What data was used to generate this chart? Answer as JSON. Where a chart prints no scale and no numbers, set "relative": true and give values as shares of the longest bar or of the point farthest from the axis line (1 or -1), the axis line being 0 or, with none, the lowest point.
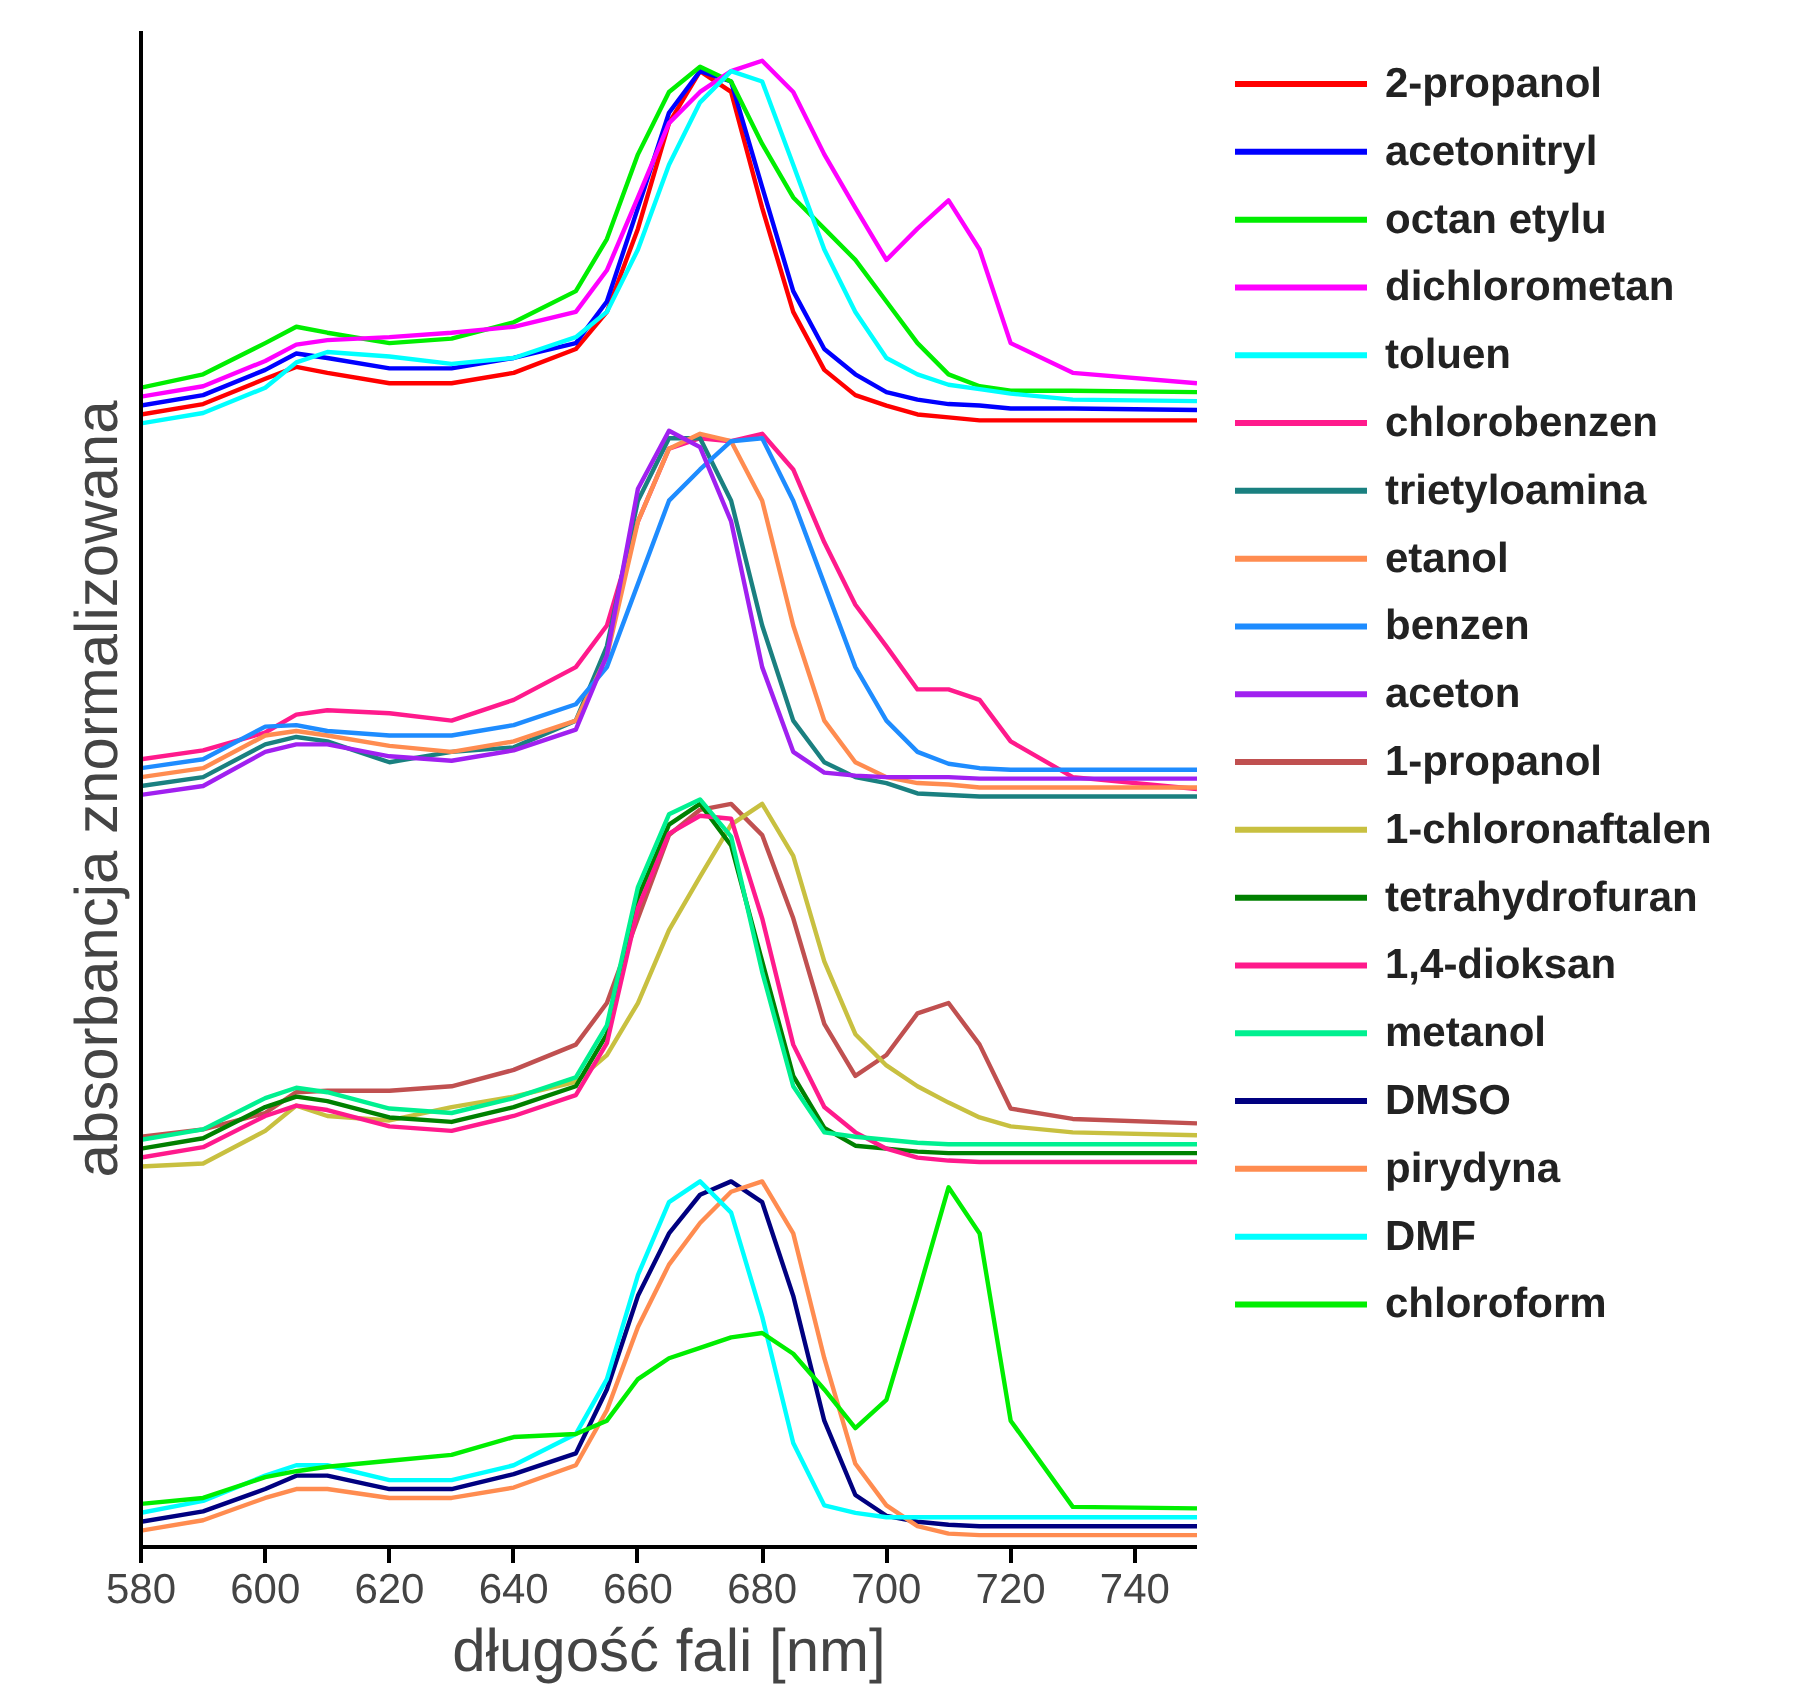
{
  "chart_data": {
    "type": "line",
    "relative": true,
    "xlabel": "długość fali [nm]",
    "ylabel": "absorbancja znormalizowana",
    "xlim": [
      580,
      750
    ],
    "xticks": [
      580,
      600,
      620,
      640,
      660,
      680,
      700,
      720,
      740
    ],
    "grid": false,
    "legend": "right",
    "marker": "none",
    "line_style": "solid",
    "x": [
      580,
      590,
      600,
      605,
      610,
      620,
      630,
      640,
      650,
      655,
      660,
      665,
      670,
      675,
      680,
      685,
      690,
      695,
      700,
      705,
      710,
      715,
      720,
      730,
      750
    ],
    "series": [
      {
        "name": "2-propanol",
        "color": "#ff0000",
        "values": [
          0.762,
          0.769,
          0.786,
          0.794,
          0.79,
          0.783,
          0.783,
          0.79,
          0.806,
          0.831,
          0.887,
          0.958,
          0.993,
          0.979,
          0.901,
          0.831,
          0.792,
          0.775,
          0.768,
          0.762,
          0.76,
          0.758,
          0.758,
          0.758,
          0.758
        ]
      },
      {
        "name": "acetonitryl",
        "color": "#0000ff",
        "values": [
          0.768,
          0.775,
          0.792,
          0.803,
          0.8,
          0.793,
          0.793,
          0.8,
          0.81,
          0.838,
          0.901,
          0.965,
          0.993,
          0.986,
          0.915,
          0.845,
          0.806,
          0.789,
          0.777,
          0.772,
          0.769,
          0.768,
          0.766,
          0.766,
          0.765
        ]
      },
      {
        "name": "octan etylu",
        "color": "#00ee00",
        "values": [
          0.78,
          0.789,
          0.81,
          0.821,
          0.817,
          0.81,
          0.813,
          0.824,
          0.845,
          0.88,
          0.937,
          0.979,
          0.996,
          0.986,
          0.944,
          0.908,
          0.887,
          0.866,
          0.838,
          0.81,
          0.789,
          0.781,
          0.778,
          0.778,
          0.777
        ]
      },
      {
        "name": "dichlorometan",
        "color": "#ff00ff",
        "values": [
          0.774,
          0.781,
          0.798,
          0.809,
          0.812,
          0.814,
          0.817,
          0.821,
          0.831,
          0.859,
          0.908,
          0.958,
          0.979,
          0.993,
          1.0,
          0.979,
          0.937,
          0.901,
          0.866,
          0.887,
          0.906,
          0.873,
          0.81,
          0.79,
          0.783
        ]
      },
      {
        "name": "toluen",
        "color": "#00ffff",
        "values": [
          0.756,
          0.763,
          0.78,
          0.797,
          0.804,
          0.801,
          0.796,
          0.8,
          0.814,
          0.831,
          0.873,
          0.93,
          0.972,
          0.993,
          0.986,
          0.93,
          0.873,
          0.831,
          0.8,
          0.789,
          0.782,
          0.779,
          0.776,
          0.772,
          0.771
        ]
      },
      {
        "name": "chlorobenzen",
        "color": "#ff1a8c",
        "values": [
          0.53,
          0.536,
          0.548,
          0.56,
          0.563,
          0.561,
          0.556,
          0.57,
          0.592,
          0.62,
          0.69,
          0.739,
          0.746,
          0.744,
          0.749,
          0.725,
          0.676,
          0.634,
          0.606,
          0.577,
          0.577,
          0.57,
          0.542,
          0.518,
          0.51
        ]
      },
      {
        "name": "trietyloamina",
        "color": "#1a8080",
        "values": [
          0.512,
          0.518,
          0.54,
          0.545,
          0.542,
          0.528,
          0.535,
          0.538,
          0.556,
          0.606,
          0.704,
          0.746,
          0.746,
          0.704,
          0.62,
          0.556,
          0.528,
          0.518,
          0.514,
          0.507,
          0.506,
          0.505,
          0.505,
          0.505,
          0.505
        ]
      },
      {
        "name": "etanol",
        "color": "#ff8c50",
        "values": [
          0.518,
          0.524,
          0.546,
          0.549,
          0.546,
          0.539,
          0.535,
          0.542,
          0.556,
          0.599,
          0.69,
          0.739,
          0.749,
          0.744,
          0.704,
          0.62,
          0.556,
          0.528,
          0.518,
          0.514,
          0.513,
          0.511,
          0.511,
          0.511,
          0.511
        ]
      },
      {
        "name": "benzen",
        "color": "#1e8cff",
        "values": [
          0.524,
          0.53,
          0.552,
          0.553,
          0.549,
          0.546,
          0.546,
          0.553,
          0.567,
          0.592,
          0.648,
          0.704,
          0.725,
          0.744,
          0.746,
          0.704,
          0.648,
          0.592,
          0.556,
          0.535,
          0.527,
          0.524,
          0.523,
          0.523,
          0.523
        ]
      },
      {
        "name": "aceton",
        "color": "#a020f0",
        "values": [
          0.506,
          0.512,
          0.535,
          0.54,
          0.54,
          0.532,
          0.529,
          0.536,
          0.55,
          0.6,
          0.712,
          0.751,
          0.74,
          0.69,
          0.592,
          0.535,
          0.521,
          0.519,
          0.518,
          0.518,
          0.518,
          0.517,
          0.517,
          0.517,
          0.517
        ]
      },
      {
        "name": "1-propanol",
        "color": "#c05050",
        "values": [
          0.276,
          0.281,
          0.292,
          0.306,
          0.307,
          0.307,
          0.31,
          0.321,
          0.338,
          0.366,
          0.423,
          0.479,
          0.496,
          0.5,
          0.479,
          0.423,
          0.352,
          0.317,
          0.331,
          0.359,
          0.366,
          0.338,
          0.295,
          0.288,
          0.285
        ]
      },
      {
        "name": "1-chloronaftalen",
        "color": "#c8c040",
        "values": [
          0.256,
          0.258,
          0.28,
          0.297,
          0.29,
          0.287,
          0.296,
          0.303,
          0.313,
          0.331,
          0.366,
          0.415,
          0.451,
          0.486,
          0.5,
          0.465,
          0.394,
          0.345,
          0.324,
          0.31,
          0.299,
          0.289,
          0.283,
          0.279,
          0.277
        ]
      },
      {
        "name": "tetrahydrofuran",
        "color": "#008000",
        "values": [
          0.268,
          0.275,
          0.296,
          0.303,
          0.3,
          0.289,
          0.286,
          0.296,
          0.31,
          0.345,
          0.437,
          0.486,
          0.5,
          0.472,
          0.394,
          0.317,
          0.282,
          0.27,
          0.268,
          0.266,
          0.265,
          0.265,
          0.265,
          0.265,
          0.265
        ]
      },
      {
        "name": "1,4-dioksan",
        "color": "#ff1a8c",
        "values": [
          0.262,
          0.269,
          0.29,
          0.297,
          0.294,
          0.283,
          0.28,
          0.29,
          0.304,
          0.339,
          0.43,
          0.48,
          0.492,
          0.49,
          0.423,
          0.338,
          0.296,
          0.279,
          0.268,
          0.262,
          0.26,
          0.259,
          0.259,
          0.259,
          0.259
        ]
      },
      {
        "name": "metanol",
        "color": "#00f090",
        "values": [
          0.274,
          0.281,
          0.302,
          0.309,
          0.306,
          0.295,
          0.292,
          0.302,
          0.316,
          0.351,
          0.444,
          0.493,
          0.503,
          0.478,
          0.387,
          0.31,
          0.279,
          0.276,
          0.274,
          0.272,
          0.271,
          0.271,
          0.271,
          0.271,
          0.271
        ]
      },
      {
        "name": "DMSO",
        "color": "#000080",
        "values": [
          0.017,
          0.024,
          0.039,
          0.048,
          0.048,
          0.039,
          0.039,
          0.049,
          0.063,
          0.106,
          0.169,
          0.211,
          0.237,
          0.246,
          0.232,
          0.169,
          0.085,
          0.035,
          0.021,
          0.017,
          0.015,
          0.014,
          0.014,
          0.014,
          0.014
        ]
      },
      {
        "name": "pirydyna",
        "color": "#ff8c50",
        "values": [
          0.011,
          0.018,
          0.033,
          0.039,
          0.039,
          0.033,
          0.033,
          0.04,
          0.055,
          0.092,
          0.148,
          0.19,
          0.218,
          0.239,
          0.246,
          0.211,
          0.127,
          0.056,
          0.028,
          0.014,
          0.009,
          0.008,
          0.008,
          0.008,
          0.008
        ]
      },
      {
        "name": "DMF",
        "color": "#00ffff",
        "values": [
          0.023,
          0.031,
          0.048,
          0.055,
          0.055,
          0.045,
          0.045,
          0.055,
          0.076,
          0.113,
          0.183,
          0.232,
          0.246,
          0.225,
          0.155,
          0.07,
          0.028,
          0.023,
          0.02,
          0.02,
          0.02,
          0.02,
          0.02,
          0.02,
          0.02
        ]
      },
      {
        "name": "chloroform",
        "color": "#00ee00",
        "values": [
          0.029,
          0.033,
          0.047,
          0.051,
          0.054,
          0.058,
          0.062,
          0.074,
          0.076,
          0.085,
          0.113,
          0.127,
          0.134,
          0.141,
          0.144,
          0.13,
          0.106,
          0.08,
          0.099,
          0.169,
          0.242,
          0.211,
          0.085,
          0.027,
          0.026
        ]
      }
    ]
  }
}
